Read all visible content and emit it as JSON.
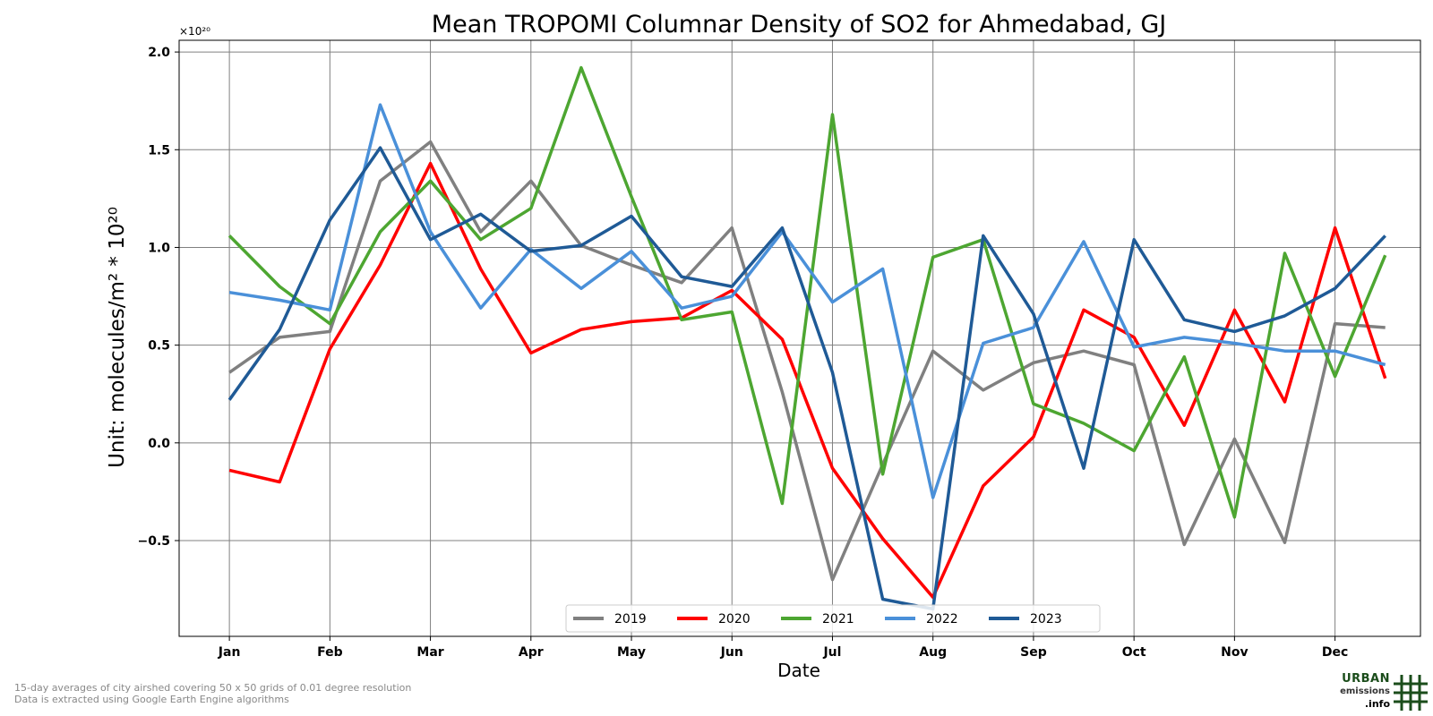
{
  "chart_data": {
    "type": "line",
    "title": "Mean TROPOMI Columnar Density of SO2 for Ahmedabad, GJ",
    "xlabel": "Date",
    "ylabel": "Unit: molecules/m² * 10²⁰",
    "y_offset_text": "×10²⁰",
    "xlim": [
      0.5,
      12.85
    ],
    "ylim": [
      -0.99,
      2.06
    ],
    "x_ticks": [
      1,
      2,
      3,
      4,
      5,
      6,
      7,
      8,
      9,
      10,
      11,
      12
    ],
    "x_tick_labels": [
      "Jan",
      "Feb",
      "Mar",
      "Apr",
      "May",
      "Jun",
      "Jul",
      "Aug",
      "Sep",
      "Oct",
      "Nov",
      "Dec"
    ],
    "y_ticks": [
      -0.5,
      0.0,
      0.5,
      1.0,
      1.5,
      2.0
    ],
    "y_tick_labels": [
      "−0.5",
      "0.0",
      "0.5",
      "1.0",
      "1.5",
      "2.0"
    ],
    "grid": true,
    "legend_position": "bottom-center",
    "x": [
      1,
      1.5,
      2,
      2.5,
      3,
      3.5,
      4,
      4.5,
      5,
      5.5,
      6,
      6.5,
      7,
      7.5,
      8,
      8.5,
      9,
      9.5,
      10,
      10.5,
      11,
      11.5,
      12,
      12.5
    ],
    "series": [
      {
        "name": "2019",
        "color": "#808080",
        "values": [
          0.36,
          0.54,
          0.57,
          1.34,
          1.54,
          1.08,
          1.34,
          1.01,
          0.91,
          0.82,
          1.1,
          0.26,
          -0.7,
          -0.11,
          0.47,
          0.27,
          0.41,
          0.47,
          0.4,
          -0.52,
          0.02,
          -0.51,
          0.61,
          0.59
        ]
      },
      {
        "name": "2020",
        "color": "#ff0000",
        "values": [
          -0.14,
          -0.2,
          0.48,
          0.91,
          1.43,
          0.89,
          0.46,
          0.58,
          0.62,
          0.64,
          0.78,
          0.53,
          -0.13,
          -0.49,
          -0.79,
          -0.22,
          0.03,
          0.68,
          0.54,
          0.09,
          0.68,
          0.21,
          1.1,
          0.33
        ]
      },
      {
        "name": "2021",
        "color": "#4da631",
        "values": [
          1.06,
          0.8,
          0.61,
          1.08,
          1.34,
          1.04,
          1.2,
          1.92,
          1.26,
          0.63,
          0.67,
          -0.31,
          1.68,
          -0.16,
          0.95,
          1.04,
          0.2,
          0.1,
          -0.04,
          0.44,
          -0.38,
          0.97,
          0.34,
          0.96
        ]
      },
      {
        "name": "2022",
        "color": "#4a90d9",
        "values": [
          0.77,
          0.73,
          0.68,
          1.73,
          1.08,
          0.69,
          0.99,
          0.79,
          0.98,
          0.69,
          0.75,
          1.08,
          0.72,
          0.89,
          -0.28,
          0.51,
          0.59,
          1.03,
          0.49,
          0.54,
          0.51,
          0.47,
          0.47,
          0.4
        ]
      },
      {
        "name": "2023",
        "color": "#1f5a96",
        "values": [
          0.22,
          0.58,
          1.14,
          1.51,
          1.04,
          1.17,
          0.98,
          1.01,
          1.16,
          0.85,
          0.8,
          1.1,
          0.36,
          -0.8,
          -0.85,
          1.06,
          0.66,
          -0.13,
          1.04,
          0.63,
          0.57,
          0.65,
          0.79,
          1.06
        ]
      }
    ]
  },
  "footer": {
    "note_line1": "15-day averages of city airshed covering 50 x 50 grids of 0.01 degree resolution",
    "note_line2": "Data is extracted using Google Earth Engine algorithms"
  },
  "logo": {
    "line1": "URBAN",
    "line2": "emissions",
    "line3": ".info",
    "color": "#1b4d1b"
  }
}
